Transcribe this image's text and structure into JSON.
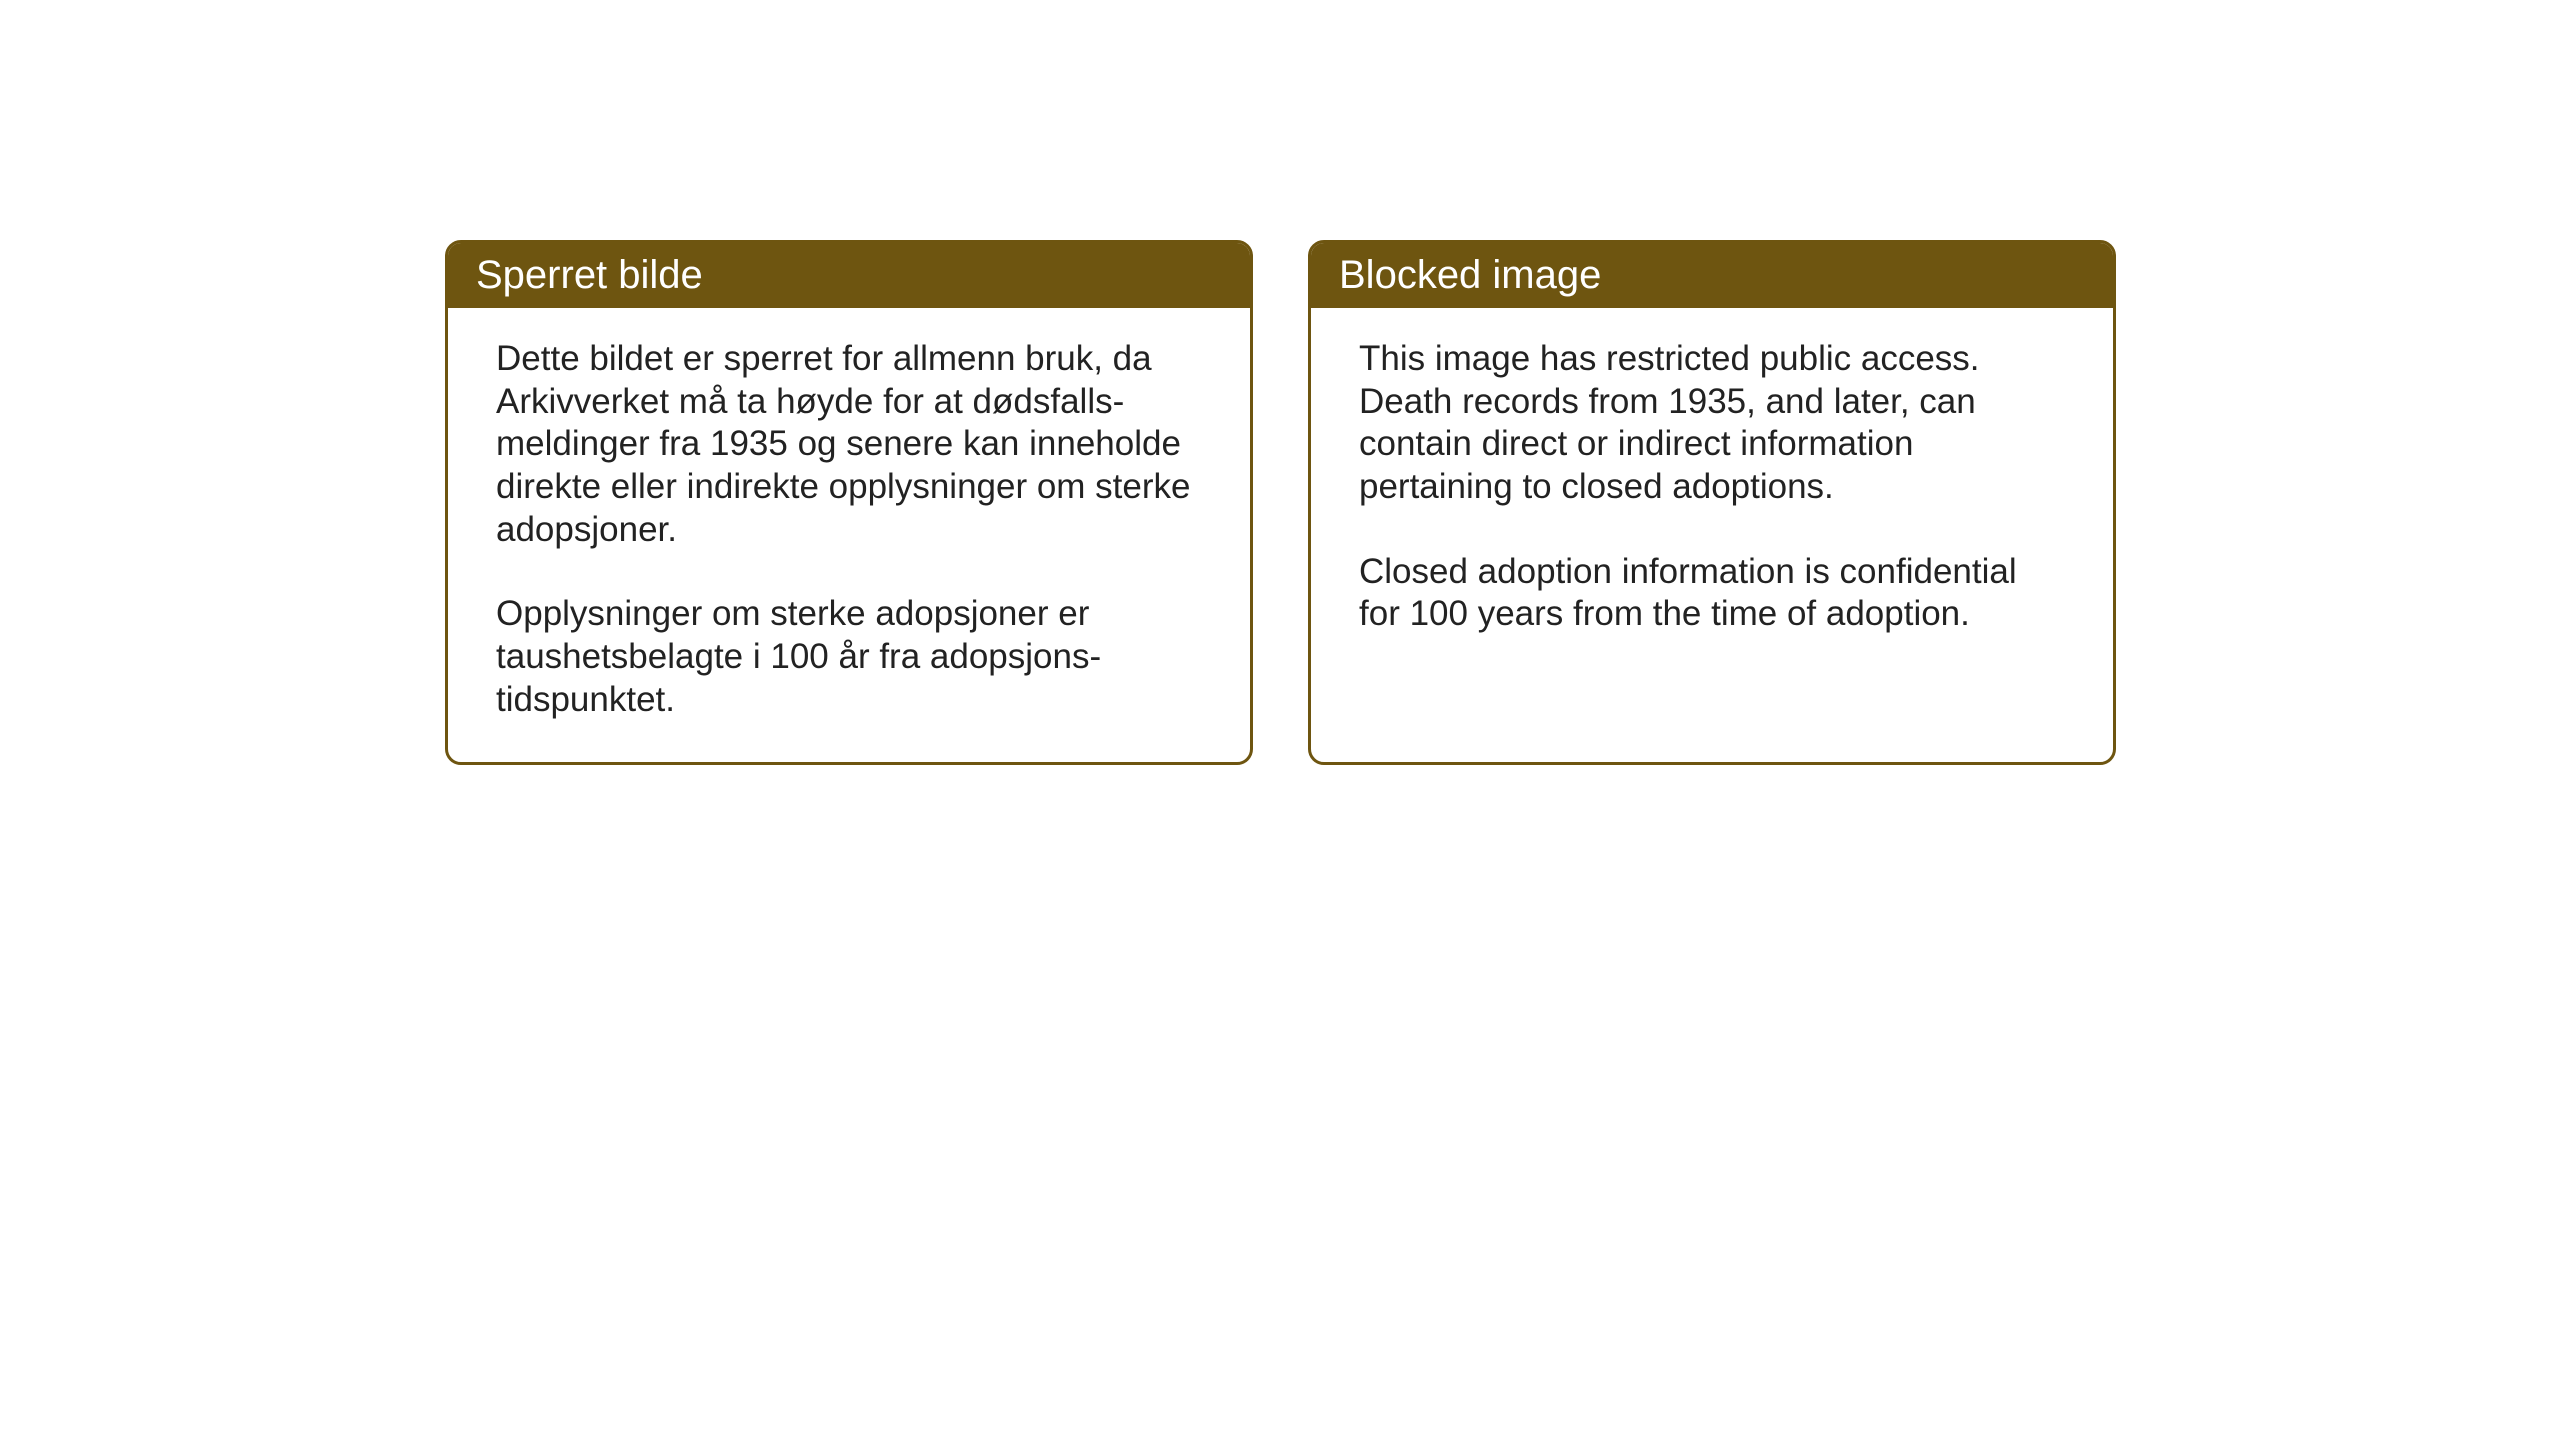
{
  "layout": {
    "background_color": "#ffffff",
    "card_border_color": "#6e5510",
    "card_border_width": 3,
    "card_border_radius": 16,
    "header_background_color": "#6e5510",
    "header_text_color": "#ffffff",
    "body_text_color": "#222222",
    "header_font_size": 40,
    "body_font_size": 35
  },
  "cards": {
    "norwegian": {
      "title": "Sperret bilde",
      "paragraph1": "Dette bildet er sperret for allmenn bruk, da Arkivverket må ta høyde for at dødsfalls-meldinger fra 1935 og senere kan inneholde direkte eller indirekte opplysninger om sterke adopsjoner.",
      "paragraph2": "Opplysninger om sterke adopsjoner er taushetsbelagte i 100 år fra adopsjons-tidspunktet."
    },
    "english": {
      "title": "Blocked image",
      "paragraph1": "This image has restricted public access. Death records from 1935, and later, can contain direct or indirect information pertaining to closed adoptions.",
      "paragraph2": "Closed adoption information is confidential for 100 years from the time of adoption."
    }
  }
}
